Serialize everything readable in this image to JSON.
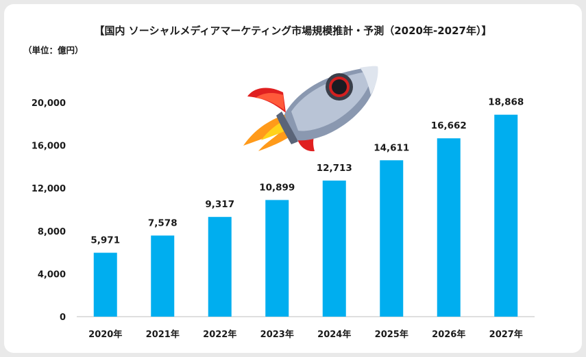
{
  "chart_data": {
    "type": "bar",
    "title": "【国内 ソーシャルメディアマーケティング市場規模推計・予測（2020年-2027年）】",
    "unit_label": "（単位：億円）",
    "categories": [
      "2020年",
      "2021年",
      "2022年",
      "2023年",
      "2024年",
      "2025年",
      "2026年",
      "2027年"
    ],
    "values": [
      5971,
      7578,
      9317,
      10899,
      12713,
      14611,
      16662,
      18868
    ],
    "value_labels": [
      "5,971",
      "7,578",
      "9,317",
      "10,899",
      "12,713",
      "14,611",
      "16,662",
      "18,868"
    ],
    "y_ticks": [
      "0",
      "4,000",
      "8,000",
      "12,000",
      "16,000",
      "20,000"
    ],
    "ylim": [
      0,
      20000
    ],
    "bar_color": "#00AEEF",
    "grid": false,
    "legend": "none"
  },
  "decoration": {
    "icon": "rocket-icon"
  }
}
